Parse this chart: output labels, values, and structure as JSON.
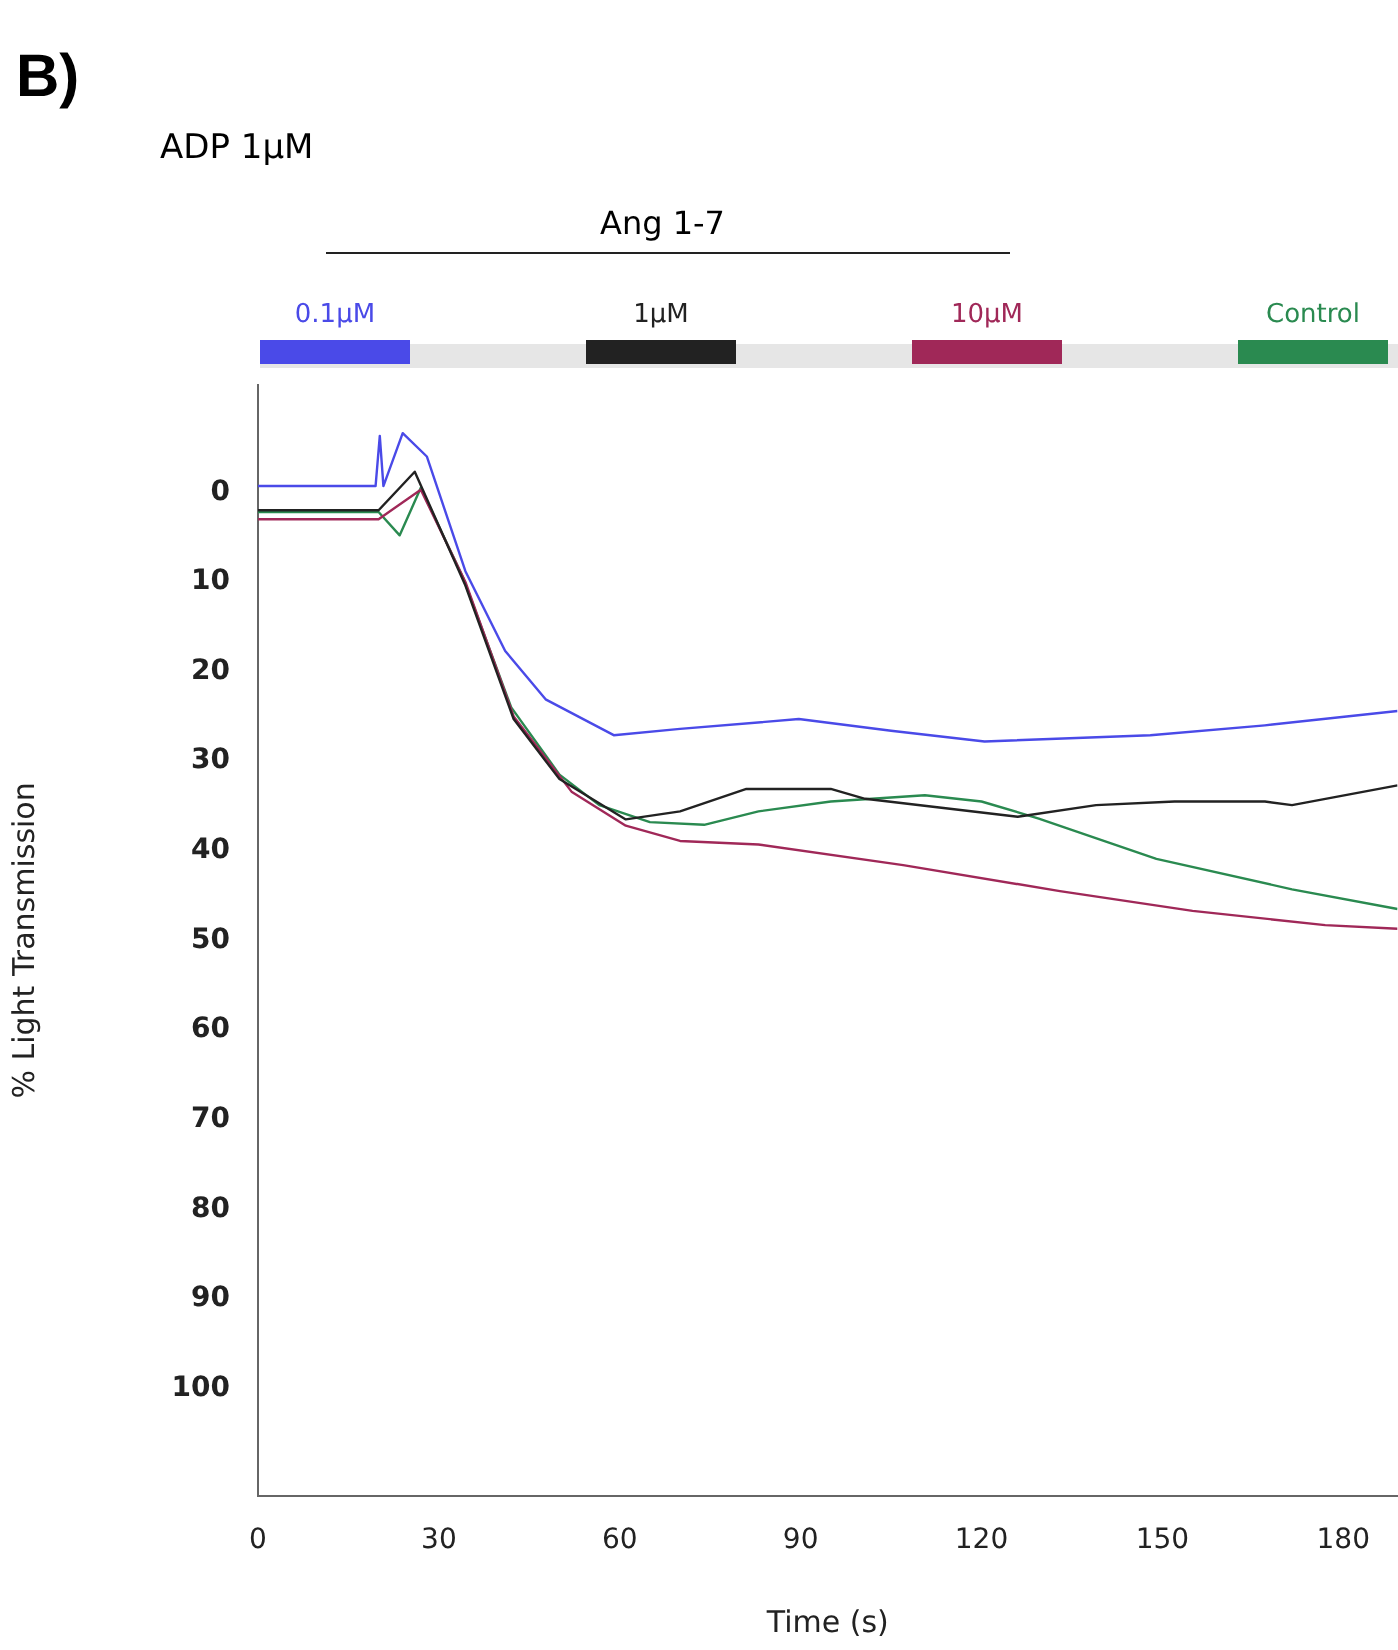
{
  "chart_data": {
    "type": "line",
    "xlabel": "Time (s)",
    "ylabel": "% Light Transmission",
    "annotations": [
      "B)",
      "ADP 1μM",
      "Ang 1-7"
    ],
    "xlim": [
      0,
      189
    ],
    "xticks": [
      0,
      30,
      60,
      90,
      120,
      150,
      180
    ],
    "ylim": [
      112,
      -12
    ],
    "yticks": [
      0,
      10,
      20,
      30,
      40,
      50,
      60,
      70,
      80,
      90,
      100
    ],
    "grid": false,
    "legend": "top",
    "marker": "none",
    "line_style": "solid",
    "series": [
      {
        "name": "0.1μM",
        "color": "#4a4ae8",
        "x": [
          0,
          19.5,
          20.2,
          20.8,
          24,
          28,
          34.4,
          41,
          47.7,
          59,
          70,
          89.7,
          105,
          120.5,
          148,
          167,
          189
        ],
        "values": [
          -0.7,
          -0.7,
          -6.3,
          -0.7,
          -6.6,
          -4,
          8.8,
          17.7,
          23.1,
          27.1,
          26.4,
          25.3,
          26.6,
          27.8,
          27.1,
          26,
          24.4
        ]
      },
      {
        "name": "1μM",
        "color": "#222222",
        "x": [
          0,
          20,
          26,
          34.4,
          42.4,
          50,
          61,
          70,
          81,
          95,
          100.7,
          126,
          139,
          152,
          167,
          171.5,
          189
        ],
        "values": [
          2,
          2,
          -2.3,
          10.4,
          25.3,
          32,
          36.5,
          35.6,
          33.1,
          33.1,
          34.2,
          36.2,
          34.9,
          34.5,
          34.5,
          34.9,
          32.7
        ]
      },
      {
        "name": "10μM",
        "color": "#a02858",
        "x": [
          0,
          20,
          27,
          34.4,
          42.4,
          52,
          61,
          70,
          83,
          107,
          133,
          155,
          177,
          189
        ],
        "values": [
          3,
          3,
          -0.3,
          10,
          25,
          33.4,
          37.2,
          38.9,
          39.3,
          41.6,
          44.5,
          46.7,
          48.3,
          48.7
        ]
      },
      {
        "name": "Control",
        "color": "#2a8a50",
        "x": [
          0,
          20,
          23.5,
          27,
          34,
          42,
          50,
          56.6,
          65,
          74,
          83,
          95,
          110.6,
          120,
          129.5,
          149,
          171.5,
          189
        ],
        "values": [
          2.2,
          2.2,
          4.8,
          -0.5,
          9.5,
          24,
          31.5,
          34.9,
          36.8,
          37.1,
          35.6,
          34.5,
          33.8,
          34.5,
          36.4,
          40.9,
          44.3,
          46.5
        ]
      }
    ]
  }
}
